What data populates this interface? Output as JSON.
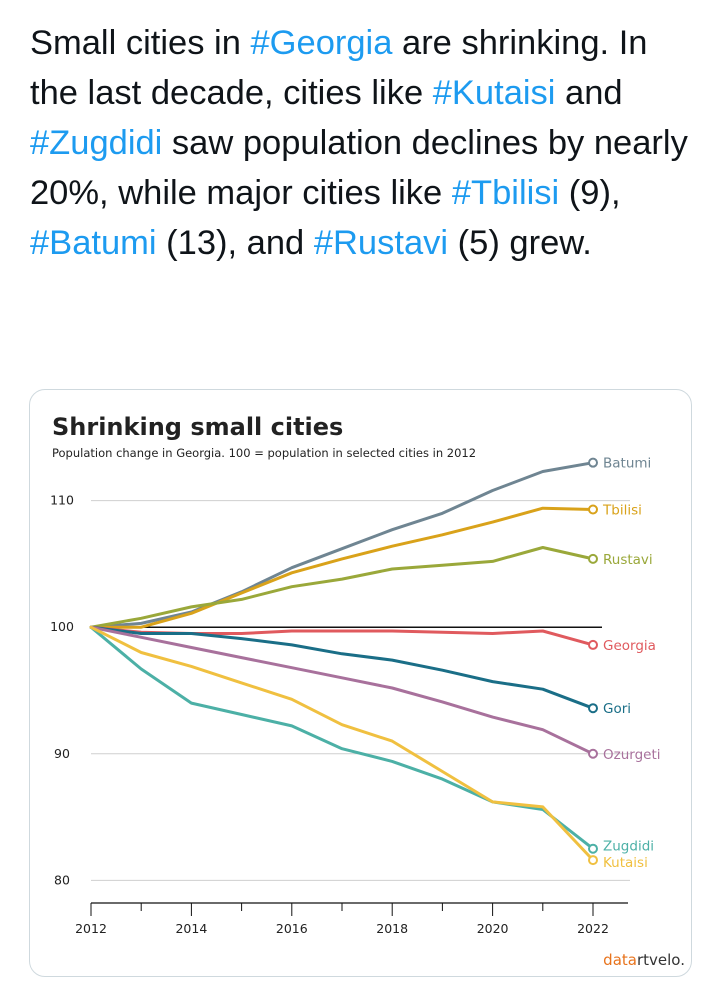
{
  "tweet": {
    "segments": [
      {
        "text": "Small cities in ",
        "tag": false
      },
      {
        "text": "#Georgia",
        "tag": true
      },
      {
        "text": " are shrinking. In the last decade, cities like ",
        "tag": false
      },
      {
        "text": "#Kutaisi",
        "tag": true
      },
      {
        "text": " and ",
        "tag": false
      },
      {
        "text": "#Zugdidi",
        "tag": true
      },
      {
        "text": " saw population declines by nearly 20%, while major cities like ",
        "tag": false
      },
      {
        "text": "#Tbilisi",
        "tag": true
      },
      {
        "text": " (9), ",
        "tag": false
      },
      {
        "text": "#Batumi",
        "tag": true
      },
      {
        "text": " (13), and ",
        "tag": false
      },
      {
        "text": "#Rustavi",
        "tag": true
      },
      {
        "text": " (5) grew.",
        "tag": false
      }
    ]
  },
  "logo": {
    "part1": "data",
    "part2": "rtvelo",
    "dot": ".",
    "color1": "#e8731c",
    "color2": "#333333"
  },
  "chart_data": {
    "type": "line",
    "title": "Shrinking small cities",
    "subtitle": "Population change in Georgia. 100 = population in selected cities in 2012",
    "xlabel": "",
    "ylabel": "",
    "x": [
      2012,
      2013,
      2014,
      2015,
      2016,
      2017,
      2018,
      2019,
      2020,
      2021,
      2022
    ],
    "xticks": [
      "2012",
      "2014",
      "2016",
      "2018",
      "2020",
      "2022"
    ],
    "yticks": [
      "80",
      "90",
      "100",
      "110"
    ],
    "ylim": [
      79,
      114
    ],
    "xlim": [
      2012,
      2022
    ],
    "reference_line": 100,
    "series": [
      {
        "name": "Batumi",
        "color": "#6f8592",
        "values": [
          100,
          100.3,
          101.2,
          102.8,
          104.7,
          106.2,
          107.7,
          109.0,
          110.8,
          112.3,
          113.0
        ]
      },
      {
        "name": "Tbilisi",
        "color": "#d9a21a",
        "values": [
          100,
          100.0,
          101.1,
          102.7,
          104.3,
          105.4,
          106.4,
          107.3,
          108.3,
          109.4,
          109.3
        ]
      },
      {
        "name": "Rustavi",
        "color": "#9aa83a",
        "values": [
          100,
          100.7,
          101.6,
          102.2,
          103.2,
          103.8,
          104.6,
          104.9,
          105.2,
          106.3,
          105.4
        ]
      },
      {
        "name": "Georgia",
        "color": "#e05a5e",
        "values": [
          100,
          99.6,
          99.5,
          99.5,
          99.7,
          99.7,
          99.7,
          99.6,
          99.5,
          99.7,
          98.6
        ]
      },
      {
        "name": "Gori",
        "color": "#1a6e87",
        "values": [
          100,
          99.5,
          99.5,
          99.1,
          98.6,
          97.9,
          97.4,
          96.6,
          95.7,
          95.1,
          93.6
        ]
      },
      {
        "name": "Ozurgeti",
        "color": "#a8719c",
        "values": [
          100,
          99.2,
          98.4,
          97.6,
          96.8,
          96.0,
          95.2,
          94.1,
          92.9,
          91.9,
          90.0
        ]
      },
      {
        "name": "Zugdidi",
        "color": "#4cb0a6",
        "values": [
          100,
          96.7,
          94.0,
          93.1,
          92.2,
          90.4,
          89.4,
          88.0,
          86.2,
          85.6,
          82.5
        ]
      },
      {
        "name": "Kutaisi",
        "color": "#f0c040",
        "values": [
          100,
          98.0,
          96.9,
          95.6,
          94.3,
          92.3,
          91.0,
          88.6,
          86.2,
          85.8,
          81.6
        ]
      }
    ]
  }
}
